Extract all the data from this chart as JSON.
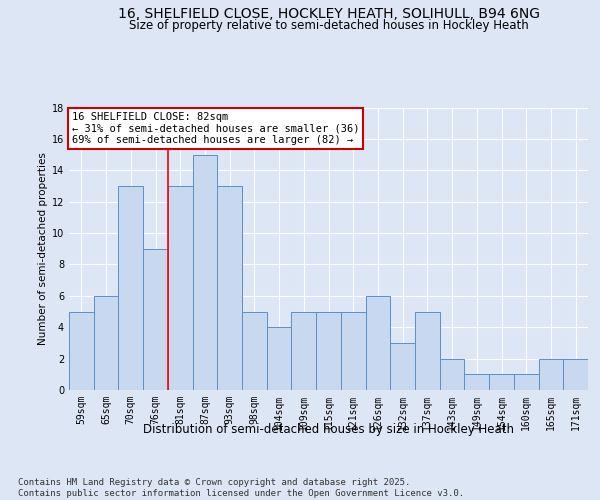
{
  "title1": "16, SHELFIELD CLOSE, HOCKLEY HEATH, SOLIHULL, B94 6NG",
  "title2": "Size of property relative to semi-detached houses in Hockley Heath",
  "xlabel": "Distribution of semi-detached houses by size in Hockley Heath",
  "ylabel": "Number of semi-detached properties",
  "categories": [
    "59sqm",
    "65sqm",
    "70sqm",
    "76sqm",
    "81sqm",
    "87sqm",
    "93sqm",
    "98sqm",
    "104sqm",
    "109sqm",
    "115sqm",
    "121sqm",
    "126sqm",
    "132sqm",
    "137sqm",
    "143sqm",
    "149sqm",
    "154sqm",
    "160sqm",
    "165sqm",
    "171sqm"
  ],
  "values": [
    5,
    6,
    13,
    9,
    13,
    15,
    13,
    5,
    4,
    5,
    5,
    5,
    6,
    3,
    5,
    2,
    1,
    1,
    1,
    2,
    2
  ],
  "bar_color": "#c8d8ee",
  "bar_edge_color": "#5b8fc9",
  "highlight_bar_index": 4,
  "ylim": [
    0,
    18
  ],
  "yticks": [
    0,
    2,
    4,
    6,
    8,
    10,
    12,
    14,
    16,
    18
  ],
  "annotation_title": "16 SHELFIELD CLOSE: 82sqm",
  "annotation_line1": "← 31% of semi-detached houses are smaller (36)",
  "annotation_line2": "69% of semi-detached houses are larger (82) →",
  "annotation_box_color": "#ffffff",
  "annotation_box_edge_color": "#cc0000",
  "footer_line1": "Contains HM Land Registry data © Crown copyright and database right 2025.",
  "footer_line2": "Contains public sector information licensed under the Open Government Licence v3.0.",
  "background_color": "#dce6f5",
  "plot_bg_color": "#dce6f5",
  "grid_color": "#ffffff",
  "title1_fontsize": 10,
  "title2_fontsize": 8.5,
  "xlabel_fontsize": 8.5,
  "ylabel_fontsize": 7.5,
  "tick_fontsize": 7,
  "footer_fontsize": 6.5,
  "annot_fontsize": 7.5
}
